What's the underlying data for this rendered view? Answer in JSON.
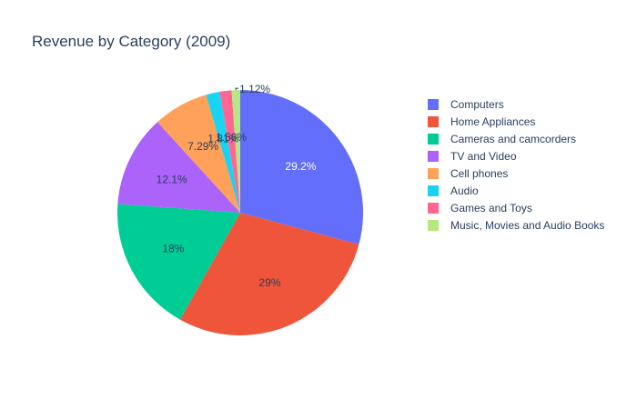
{
  "chart_data": {
    "type": "pie",
    "title": "Revenue by Category (2009)",
    "categories": [
      "Computers",
      "Home Appliances",
      "Cameras and camcorders",
      "TV and Video",
      "Cell phones",
      "Audio",
      "Games and Toys",
      "Music, Movies and Audio Books"
    ],
    "values": [
      29.2,
      29,
      18,
      12.1,
      7.29,
      1.81,
      1.56,
      1.12
    ],
    "labels": [
      "29.2%",
      "29%",
      "18%",
      "12.1%",
      "7.29%",
      "1.81%",
      "1.56%",
      "1.12%"
    ],
    "colors": [
      "#636efa",
      "#ef553b",
      "#00cc96",
      "#ab63fa",
      "#ffa15a",
      "#19d3f3",
      "#ff6692",
      "#b6e880"
    ],
    "legend_position": "right",
    "direction": "clockwise",
    "start_angle": "top"
  }
}
